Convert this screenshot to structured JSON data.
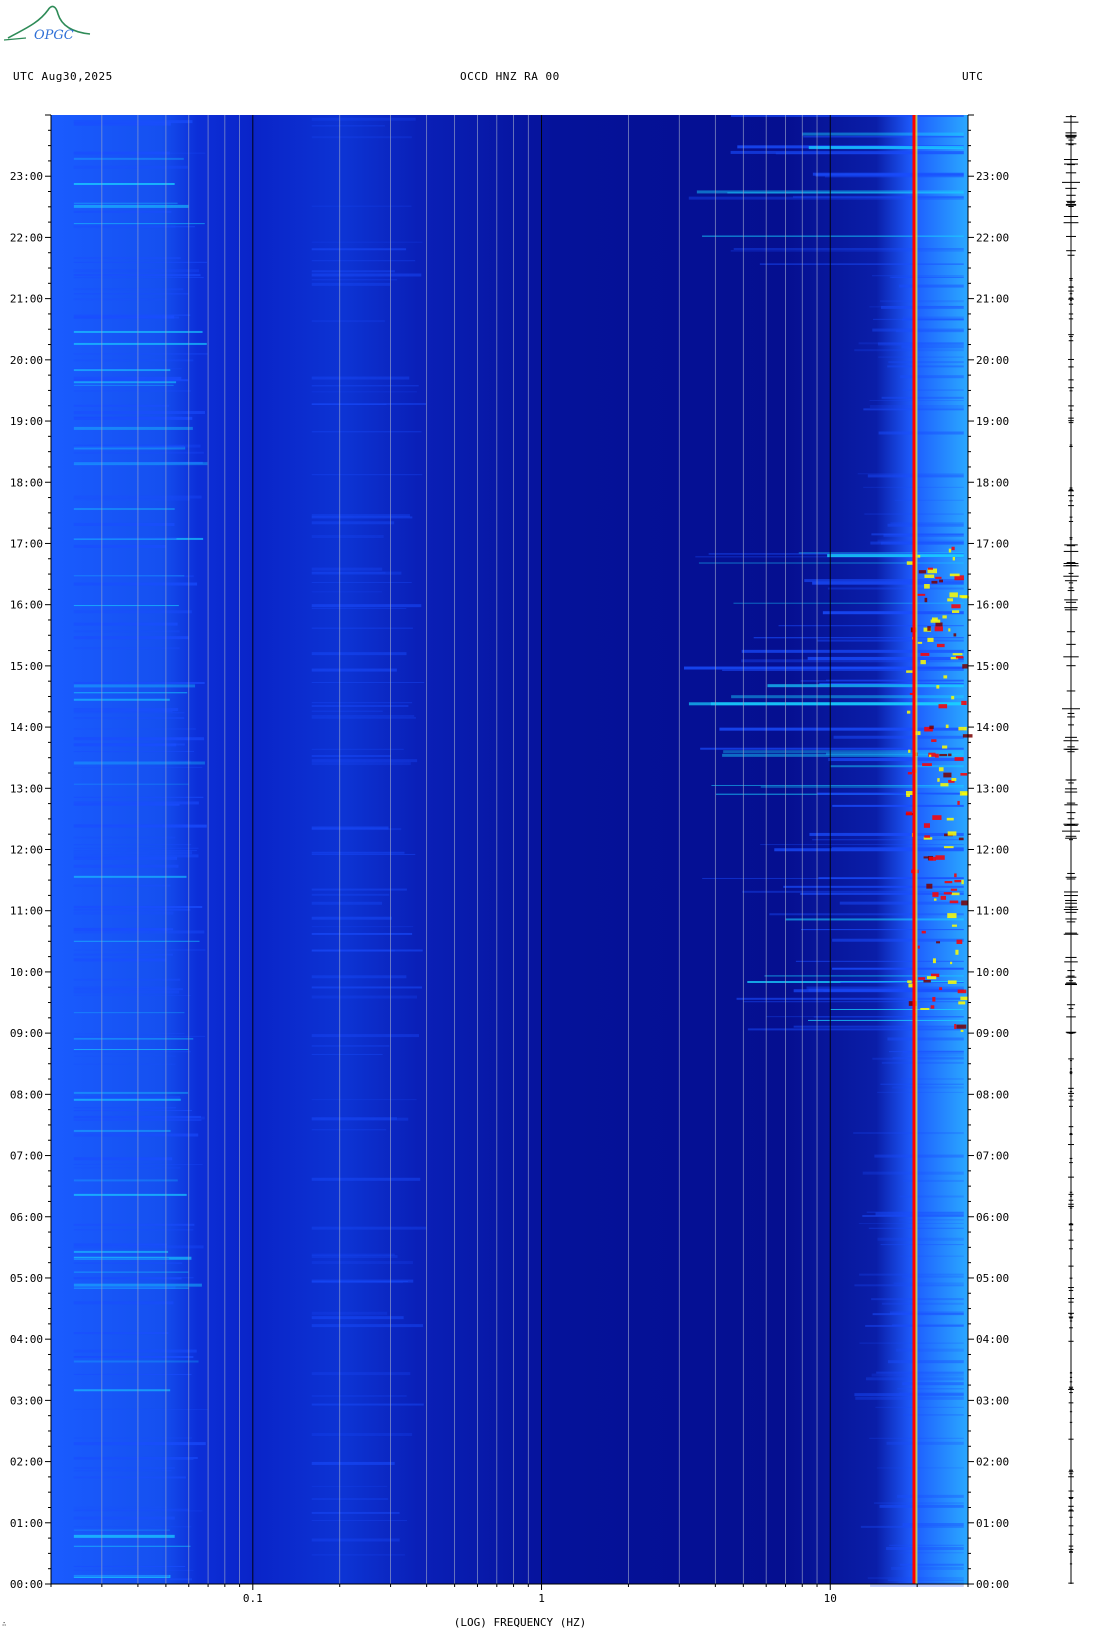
{
  "header": {
    "left": "UTC  Aug30,2025",
    "title": "OCCD HNZ RA 00",
    "right": "UTC"
  },
  "logo": {
    "text": "OPGC",
    "color": "#2e8b57"
  },
  "footer_mark": "∴",
  "chart_data": {
    "type": "heatmap",
    "title": "OCCD HNZ RA 00",
    "xlabel": "(LOG) FREQUENCY (HZ)",
    "ylabel": "UTC",
    "xscale": "log",
    "xlim": [
      0.02,
      30
    ],
    "x_ticks": [
      0.1,
      1,
      10
    ],
    "x_tick_labels": [
      "0.1",
      "1",
      "10"
    ],
    "ylim": [
      "00:00",
      "24:00"
    ],
    "y_ticks": [
      0,
      1,
      2,
      3,
      4,
      5,
      6,
      7,
      8,
      9,
      10,
      11,
      12,
      13,
      14,
      15,
      16,
      17,
      18,
      19,
      20,
      21,
      22,
      23
    ],
    "y_tick_labels": [
      "00:00",
      "01:00",
      "02:00",
      "03:00",
      "04:00",
      "05:00",
      "06:00",
      "07:00",
      "08:00",
      "09:00",
      "10:00",
      "11:00",
      "12:00",
      "13:00",
      "14:00",
      "15:00",
      "16:00",
      "17:00",
      "18:00",
      "19:00",
      "20:00",
      "21:00",
      "22:00",
      "23:00"
    ],
    "colormap": [
      "#00007a",
      "#0000c8",
      "#1a4dff",
      "#19d2ff",
      "#ffff00",
      "#ff0000",
      "#7a0000"
    ],
    "persistent_line_hz": 19.5,
    "active_period_hours": [
      9,
      17
    ]
  }
}
